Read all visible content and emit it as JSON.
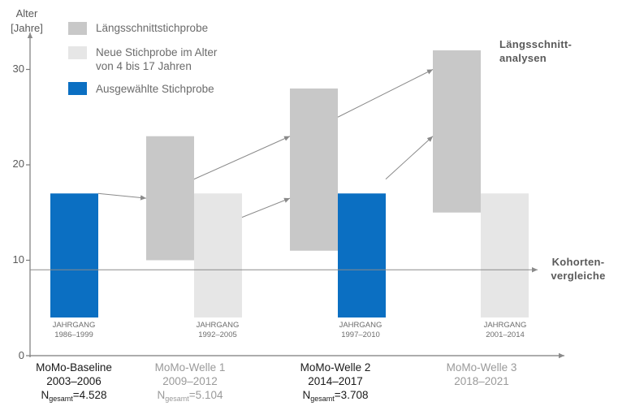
{
  "y_axis": {
    "title_line1": "Alter",
    "title_line2": "[Jahre]",
    "ticks": [
      {
        "value": 0,
        "label": "0"
      },
      {
        "value": 10,
        "label": "10"
      },
      {
        "value": 20,
        "label": "20"
      },
      {
        "value": 30,
        "label": "30"
      }
    ]
  },
  "legend": [
    {
      "key": "long",
      "label": "Längsschnittstichprobe",
      "color": "#c8c8c8"
    },
    {
      "key": "new",
      "label": "Neue Stichprobe im Alter von 4 bis 17 Jahren",
      "line1": "Neue Stichprobe im Alter",
      "line2": "von 4 bis 17 Jahren",
      "color": "#e6e6e6"
    },
    {
      "key": "selected",
      "label": "Ausgewählte Stichprobe",
      "color": "#0b6fc2"
    }
  ],
  "right_labels": {
    "longitudinal_line1": "Längsschnitt-",
    "longitudinal_line2": "analysen",
    "cohort_line1": "Kohorten-",
    "cohort_line2": "vergleiche"
  },
  "colors": {
    "long": "#c8c8c8",
    "new": "#e6e6e6",
    "selected": "#0b6fc2",
    "axis": "#7a7a7a",
    "arrow": "#8a8a8a"
  },
  "bars": [
    {
      "group": 0,
      "slot": 0,
      "kind": "selected",
      "from": 4,
      "to": 17,
      "jahrgang": "JAHRGANG",
      "years": "1986–1999"
    },
    {
      "group": 1,
      "slot": 0,
      "kind": "long",
      "from": 10,
      "to": 23
    },
    {
      "group": 1,
      "slot": 1,
      "kind": "new",
      "from": 4,
      "to": 17,
      "jahrgang": "JAHRGANG",
      "years": "1992–2005"
    },
    {
      "group": 2,
      "slot": 0,
      "kind": "long",
      "from": 11,
      "to": 28
    },
    {
      "group": 2,
      "slot": 1,
      "kind": "selected",
      "from": 4,
      "to": 17,
      "jahrgang": "JAHRGANG",
      "years": "1997–2010"
    },
    {
      "group": 3,
      "slot": 0,
      "kind": "long",
      "from": 15,
      "to": 32
    },
    {
      "group": 3,
      "slot": 1,
      "kind": "new",
      "from": 4,
      "to": 17,
      "jahrgang": "JAHRGANG",
      "years": "2001–2014"
    }
  ],
  "waves": [
    {
      "name": "MoMo-Baseline",
      "period": "2003–2006",
      "n_prefix": "N",
      "n_sub": "gesamt",
      "n_value": "=4.528",
      "style": "dark"
    },
    {
      "name": "MoMo-Welle 1",
      "period": "2009–2012",
      "n_prefix": "N",
      "n_sub": "gesamt",
      "n_value": "=5.104",
      "style": "light"
    },
    {
      "name": "MoMo-Welle 2",
      "period": "2014–2017",
      "n_prefix": "N",
      "n_sub": "gesamt",
      "n_value": "=3.708",
      "style": "dark"
    },
    {
      "name": "MoMo-Welle 3",
      "period": "2018–2021",
      "n_prefix": "",
      "n_sub": "",
      "n_value": "",
      "style": "light"
    }
  ],
  "longitudinal_arrows": [
    {
      "from_bar": 0,
      "from_age": 17,
      "to_bar": 1,
      "to_age": 16.5
    },
    {
      "from_bar": 1,
      "from_age": 18.5,
      "to_bar": 3,
      "to_age": 23
    },
    {
      "from_bar": 2,
      "from_age": 14.5,
      "to_bar": 3,
      "to_age": 16.5
    },
    {
      "from_bar": 3,
      "from_age": 25,
      "to_bar": 5,
      "to_age": 30
    },
    {
      "from_bar": 4,
      "from_age": 18.5,
      "to_bar": 5,
      "to_age": 23
    }
  ],
  "cohort_line_age": 9
}
